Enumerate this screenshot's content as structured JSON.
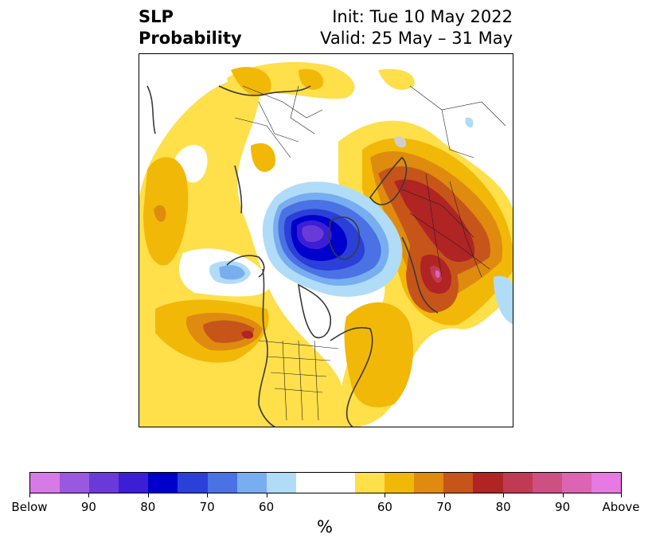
{
  "title": {
    "left_line1": "SLP",
    "left_line2": "Probability",
    "init": "Init: Tue 10 May 2022",
    "valid": "Valid: 25 May – 31 May"
  },
  "colorbar": {
    "units": "%",
    "colors": [
      "#d67ae8",
      "#9a58e0",
      "#6a3ad8",
      "#3c1ed6",
      "#0000cc",
      "#2a40d8",
      "#4a72e4",
      "#78aef0",
      "#b0dcf8",
      "#ffffff",
      "#ffdf4a",
      "#f2b807",
      "#df8b10",
      "#c7551a",
      "#b02424",
      "#c03a52",
      "#cc5082",
      "#dc64b2",
      "#e67ae2"
    ],
    "tick_labels": [
      "Below",
      "90",
      "80",
      "70",
      "60",
      "60",
      "70",
      "80",
      "90",
      "Above"
    ]
  },
  "map": {
    "projection": "north-polar-stereographic",
    "features": [
      "Below-normal SLP probability over Arctic Ocean / Greenland",
      "Above-normal SLP probability over Scandinavia / Western Russia",
      "Above-normal SLP probability over North Pacific",
      "Above-normal SLP probability over North Atlantic"
    ]
  }
}
